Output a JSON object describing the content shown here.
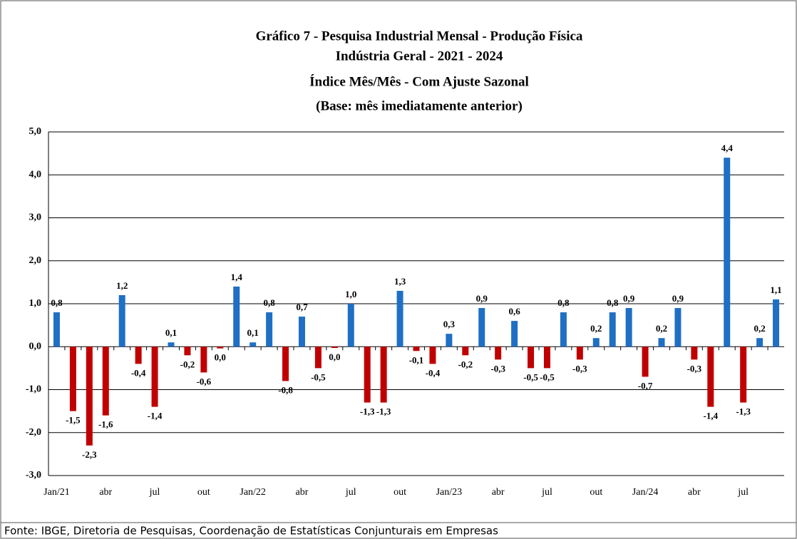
{
  "chart_data": {
    "type": "bar",
    "title": [
      "Gráfico 7 - Pesquisa Industrial Mensal - Produção Física",
      "Indústria Geral - 2021 - 2024",
      "Índice Mês/Mês - Com Ajuste Sazonal",
      "(Base: mês imediatamente anterior)"
    ],
    "categories": [
      "Jan/21",
      null,
      null,
      "abr",
      null,
      null,
      "jul",
      null,
      null,
      "out",
      null,
      null,
      "Jan/22",
      null,
      null,
      "abr",
      null,
      null,
      "jul",
      null,
      null,
      "out",
      null,
      null,
      "Jan/23",
      null,
      null,
      "abr",
      null,
      null,
      "jul",
      null,
      null,
      "out",
      null,
      null,
      "Jan/24",
      null,
      null,
      "abr",
      null,
      null,
      "jul",
      null,
      null
    ],
    "values": [
      0.8,
      -1.5,
      -2.3,
      -1.6,
      1.2,
      -0.4,
      -1.4,
      0.1,
      -0.2,
      -0.6,
      -0.04,
      1.4,
      0.1,
      0.8,
      -0.8,
      0.7,
      -0.5,
      -0.03,
      1.0,
      -1.3,
      -1.3,
      1.3,
      -0.1,
      -0.4,
      0.3,
      -0.2,
      0.9,
      -0.3,
      0.6,
      -0.5,
      -0.5,
      0.8,
      -0.3,
      0.2,
      0.8,
      0.9,
      -0.7,
      0.2,
      0.9,
      -0.3,
      -1.4,
      4.4,
      -1.3,
      0.2,
      1.1
    ],
    "value_labels": [
      "0,8",
      "-1,5",
      "-2,3",
      "-1,6",
      "1,2",
      "-0,4",
      "-1,4",
      "0,1",
      "-0,2",
      "-0,6",
      "0,0",
      "1,4",
      "0,1",
      "0,8",
      "-0,8",
      "0,7",
      "-0,5",
      "0,0",
      "1,0",
      "-1,3",
      "-1,3",
      "1,3",
      "-0,1",
      "-0,4",
      "0,3",
      "-0,2",
      "0,9",
      "-0,3",
      "0,6",
      "-0,5",
      "-0,5",
      "0,8",
      "-0,3",
      "0,2",
      "0,8",
      "0,9",
      "-0,7",
      "0,2",
      "0,9",
      "-0,3",
      "-1,4",
      "4,4",
      "-1,3",
      "0,2",
      "1,1"
    ],
    "positive_color": "#1f6fc5",
    "negative_color": "#c00000",
    "ylim": [
      -3,
      5
    ],
    "yticks": [
      {
        "value": -3,
        "label": "-3,0"
      },
      {
        "value": -2,
        "label": "-2,0"
      },
      {
        "value": -1,
        "label": "-1,0"
      },
      {
        "value": 0,
        "label": "0,0"
      },
      {
        "value": 1,
        "label": "1,0"
      },
      {
        "value": 2,
        "label": "2,0"
      },
      {
        "value": 3,
        "label": "3,0"
      },
      {
        "value": 4,
        "label": "4,0"
      },
      {
        "value": 5,
        "label": "5,0"
      }
    ],
    "grid": true,
    "source": "Fonte: IBGE, Diretoria de Pesquisas, Coordenação de Estatísticas Conjunturais em Empresas"
  }
}
